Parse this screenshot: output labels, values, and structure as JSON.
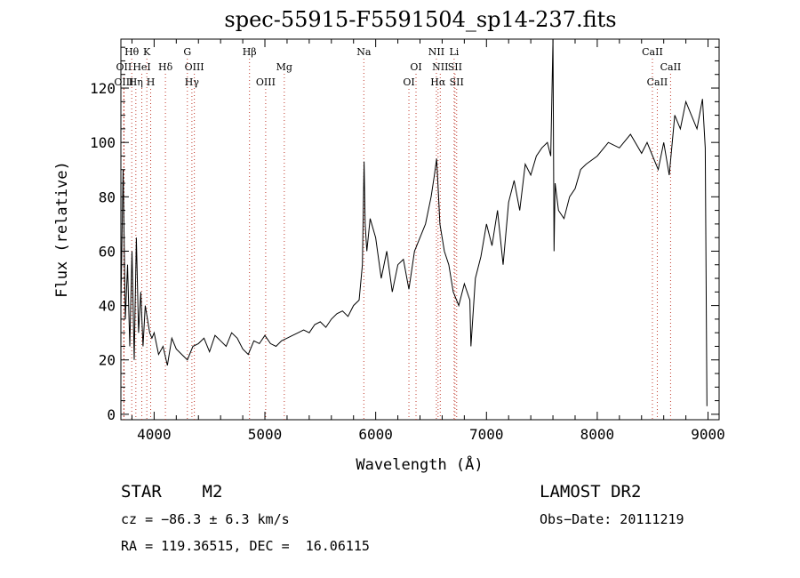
{
  "chart_data": {
    "type": "line",
    "title": "spec-55915-F5591504_sp14-237.fits",
    "xlabel": "Wavelength (Å)",
    "ylabel": "Flux (relative)",
    "xlim": [
      3700,
      9100
    ],
    "ylim": [
      -2,
      138
    ],
    "xticks": [
      4000,
      5000,
      6000,
      7000,
      8000,
      9000
    ],
    "yticks": [
      0,
      20,
      40,
      60,
      80,
      100,
      120
    ],
    "grid": false,
    "series": [
      {
        "x": [
          3700,
          3720,
          3740,
          3760,
          3780,
          3800,
          3820,
          3840,
          3860,
          3880,
          3900,
          3920,
          3940,
          3960,
          3980,
          4000,
          4040,
          4080,
          4120,
          4160,
          4200,
          4250,
          4300,
          4350,
          4400,
          4450,
          4500,
          4550,
          4600,
          4650,
          4700,
          4750,
          4800,
          4850,
          4900,
          4950,
          5000,
          5050,
          5100,
          5150,
          5200,
          5250,
          5300,
          5350,
          5400,
          5450,
          5500,
          5550,
          5600,
          5650,
          5700,
          5750,
          5800,
          5850,
          5880,
          5895,
          5905,
          5920,
          5950,
          6000,
          6050,
          6100,
          6150,
          6200,
          6250,
          6300,
          6350,
          6400,
          6450,
          6500,
          6530,
          6550,
          6565,
          6580,
          6620,
          6660,
          6700,
          6750,
          6800,
          6850,
          6860,
          6900,
          6950,
          7000,
          7050,
          7100,
          7150,
          7200,
          7250,
          7300,
          7350,
          7400,
          7450,
          7500,
          7550,
          7580,
          7600,
          7610,
          7620,
          7650,
          7700,
          7750,
          7800,
          7850,
          7900,
          8000,
          8100,
          8200,
          8300,
          8400,
          8450,
          8500,
          8550,
          8600,
          8650,
          8700,
          8750,
          8800,
          8850,
          8900,
          8950,
          8975,
          8990
        ],
        "y": [
          40,
          90,
          35,
          55,
          25,
          60,
          20,
          65,
          30,
          45,
          25,
          40,
          35,
          30,
          28,
          30,
          22,
          25,
          18,
          28,
          24,
          22,
          20,
          25,
          26,
          28,
          23,
          29,
          27,
          25,
          30,
          28,
          24,
          22,
          27,
          26,
          29,
          26,
          25,
          27,
          28,
          29,
          30,
          31,
          30,
          33,
          34,
          32,
          35,
          37,
          38,
          36,
          40,
          42,
          55,
          93,
          70,
          60,
          72,
          65,
          50,
          60,
          45,
          55,
          57,
          46,
          60,
          65,
          70,
          80,
          88,
          94,
          82,
          70,
          60,
          55,
          45,
          40,
          48,
          42,
          25,
          50,
          58,
          70,
          62,
          75,
          55,
          78,
          86,
          75,
          92,
          88,
          95,
          98,
          100,
          95,
          140,
          60,
          85,
          75,
          72,
          80,
          83,
          90,
          92,
          95,
          100,
          98,
          103,
          96,
          100,
          95,
          90,
          100,
          88,
          110,
          105,
          115,
          110,
          105,
          116,
          98,
          3
        ]
      }
    ],
    "lines": [
      {
        "label": "Hθ",
        "x": 3798,
        "row": 1
      },
      {
        "label": "OII",
        "x": 3727,
        "row": 2
      },
      {
        "label": "HeI",
        "x": 3889,
        "row": 2
      },
      {
        "label": "OIII",
        "x": 3727,
        "row": 3
      },
      {
        "label": "Hη",
        "x": 3835,
        "row": 3
      },
      {
        "label": "K",
        "x": 3934,
        "row": 1
      },
      {
        "label": "H",
        "x": 3969,
        "row": 3
      },
      {
        "label": "Hδ",
        "x": 4102,
        "row": 2
      },
      {
        "label": "G",
        "x": 4300,
        "row": 1
      },
      {
        "label": "OIII",
        "x": 4363,
        "row": 2
      },
      {
        "label": "Hγ",
        "x": 4341,
        "row": 3
      },
      {
        "label": "Hβ",
        "x": 4861,
        "row": 1
      },
      {
        "label": "OIII",
        "x": 5007,
        "row": 3
      },
      {
        "label": "Mg",
        "x": 5175,
        "row": 2
      },
      {
        "label": "Na",
        "x": 5893,
        "row": 1
      },
      {
        "label": "OI",
        "x": 6300,
        "row": 3
      },
      {
        "label": "OI",
        "x": 6364,
        "row": 2
      },
      {
        "label": "NII",
        "x": 6548,
        "row": 1
      },
      {
        "label": "NII",
        "x": 6583,
        "row": 2
      },
      {
        "label": "Hα",
        "x": 6563,
        "row": 3
      },
      {
        "label": "Li",
        "x": 6708,
        "row": 1
      },
      {
        "label": "SII",
        "x": 6716,
        "row": 2
      },
      {
        "label": "SII",
        "x": 6731,
        "row": 3
      },
      {
        "label": "CaII",
        "x": 8498,
        "row": 1
      },
      {
        "label": "CaII",
        "x": 8662,
        "row": 2
      },
      {
        "label": "CaII",
        "x": 8542,
        "row": 3
      }
    ]
  },
  "info": {
    "class": "STAR    M2",
    "survey": "LAMOST DR2",
    "cz": "cz = −86.3 ± 6.3 km/s",
    "obsdate": "Obs−Date: 20111219",
    "coords": "RA = 119.36515, DEC =  16.06115"
  }
}
